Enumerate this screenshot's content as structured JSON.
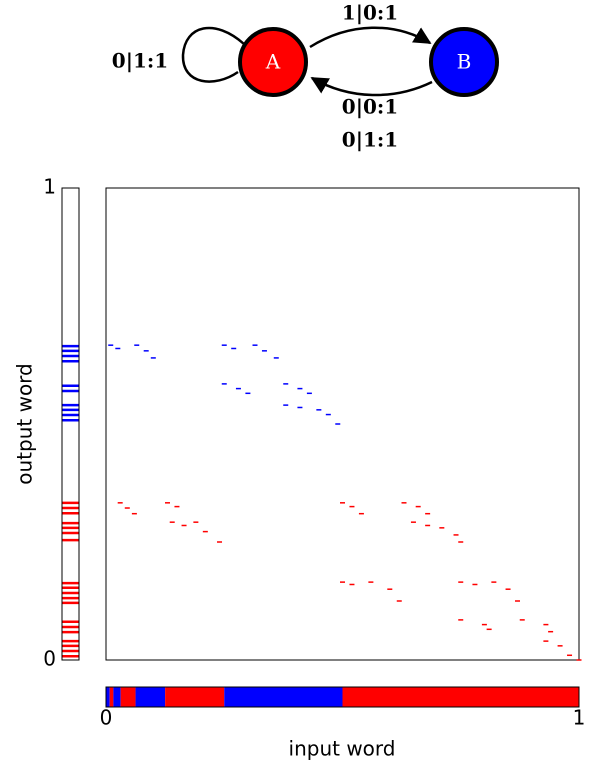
{
  "automaton": {
    "nodes": [
      {
        "label": "A",
        "color": "#ff0000"
      },
      {
        "label": "B",
        "color": "#0000ff"
      }
    ],
    "edges": [
      {
        "from": "A",
        "to": "A",
        "labels": [
          "0|1:1"
        ]
      },
      {
        "from": "A",
        "to": "B",
        "labels": [
          "1|0:1"
        ]
      },
      {
        "from": "B",
        "to": "A",
        "labels": [
          "0|0:1",
          "0|1:1"
        ]
      }
    ]
  },
  "chart_data": {
    "type": "scatter",
    "xlabel": "input word",
    "ylabel": "output word",
    "xlim": [
      0,
      1
    ],
    "ylim": [
      0,
      1
    ],
    "xticks": [
      0,
      1
    ],
    "yticks": [
      0,
      1
    ],
    "series": [
      {
        "name": "B",
        "color": "#0000ff",
        "x": [
          0.01,
          0.025,
          0.065,
          0.085,
          0.1,
          0.25,
          0.27,
          0.315,
          0.335,
          0.36,
          0.25,
          0.28,
          0.3,
          0.38,
          0.41,
          0.43,
          0.38,
          0.41,
          0.45,
          0.47,
          0.49
        ],
        "values": [
          0.667,
          0.66,
          0.667,
          0.655,
          0.64,
          0.667,
          0.66,
          0.667,
          0.655,
          0.64,
          0.585,
          0.575,
          0.565,
          0.585,
          0.575,
          0.565,
          0.54,
          0.535,
          0.53,
          0.52,
          0.5
        ]
      },
      {
        "name": "A",
        "color": "#ff0000",
        "x": [
          0.03,
          0.045,
          0.06,
          0.13,
          0.15,
          0.14,
          0.165,
          0.19,
          0.21,
          0.24,
          0.5,
          0.52,
          0.54,
          0.63,
          0.66,
          0.68,
          0.65,
          0.68,
          0.71,
          0.74,
          0.75,
          0.5,
          0.52,
          0.56,
          0.6,
          0.62,
          0.75,
          0.78,
          0.82,
          0.85,
          0.87,
          0.75,
          0.8,
          0.81,
          0.88,
          0.93,
          0.94,
          0.93,
          0.96,
          0.98,
          1.0
        ],
        "values": [
          0.333,
          0.322,
          0.31,
          0.333,
          0.325,
          0.292,
          0.285,
          0.292,
          0.272,
          0.25,
          0.333,
          0.325,
          0.31,
          0.333,
          0.325,
          0.31,
          0.292,
          0.285,
          0.28,
          0.265,
          0.25,
          0.165,
          0.16,
          0.165,
          0.15,
          0.125,
          0.165,
          0.16,
          0.165,
          0.15,
          0.125,
          0.085,
          0.075,
          0.065,
          0.085,
          0.075,
          0.06,
          0.04,
          0.03,
          0.01,
          0.0
        ]
      }
    ],
    "input_bar": {
      "segments": [
        {
          "start": 0,
          "end": 0.0078,
          "color": "#0000ff"
        },
        {
          "start": 0.0078,
          "end": 0.0156,
          "color": "#ff0000"
        },
        {
          "start": 0.0156,
          "end": 0.031,
          "color": "#0000ff"
        },
        {
          "start": 0.031,
          "end": 0.0625,
          "color": "#ff0000"
        },
        {
          "start": 0.0625,
          "end": 0.125,
          "color": "#0000ff"
        },
        {
          "start": 0.125,
          "end": 0.25,
          "color": "#ff0000"
        },
        {
          "start": 0.25,
          "end": 0.5,
          "color": "#0000ff"
        },
        {
          "start": 0.5,
          "end": 1,
          "color": "#ff0000"
        }
      ]
    },
    "output_bar": {
      "stripes": [
        {
          "color": "#0000ff",
          "values": [
            0.665,
            0.655,
            0.644,
            0.633,
            0.581,
            0.57,
            0.54,
            0.53,
            0.519,
            0.508
          ]
        },
        {
          "color": "#ff0000",
          "values": [
            0.333,
            0.322,
            0.311,
            0.29,
            0.28,
            0.269,
            0.254,
            0.163,
            0.153,
            0.142,
            0.131,
            0.121,
            0.081,
            0.07,
            0.059,
            0.04,
            0.03,
            0.019,
            0.008
          ]
        }
      ]
    }
  }
}
